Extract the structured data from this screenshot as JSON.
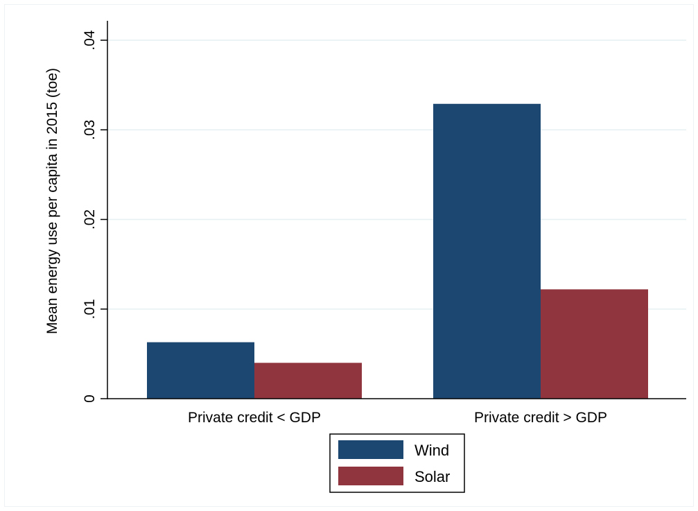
{
  "chart_data": {
    "type": "bar",
    "categories": [
      "Private credit < GDP",
      "Private credit > GDP"
    ],
    "series": [
      {
        "name": "Wind",
        "values": [
          0.0063,
          0.0329
        ],
        "color": "#1c4770"
      },
      {
        "name": "Solar",
        "values": [
          0.004,
          0.0122
        ],
        "color": "#90353d"
      }
    ],
    "ylabel": "Mean energy use per capita in 2015 (toe)",
    "xlabel": "",
    "ylim": [
      0,
      0.04
    ],
    "yticks": [
      0,
      0.01,
      0.02,
      0.03,
      0.04
    ],
    "ytick_labels": [
      "0",
      ".01",
      ".02",
      ".03",
      ".04"
    ],
    "grid": true,
    "legend_position": "bottom",
    "colors": {
      "grid": "#e6eff2",
      "axis": "#000000"
    }
  }
}
